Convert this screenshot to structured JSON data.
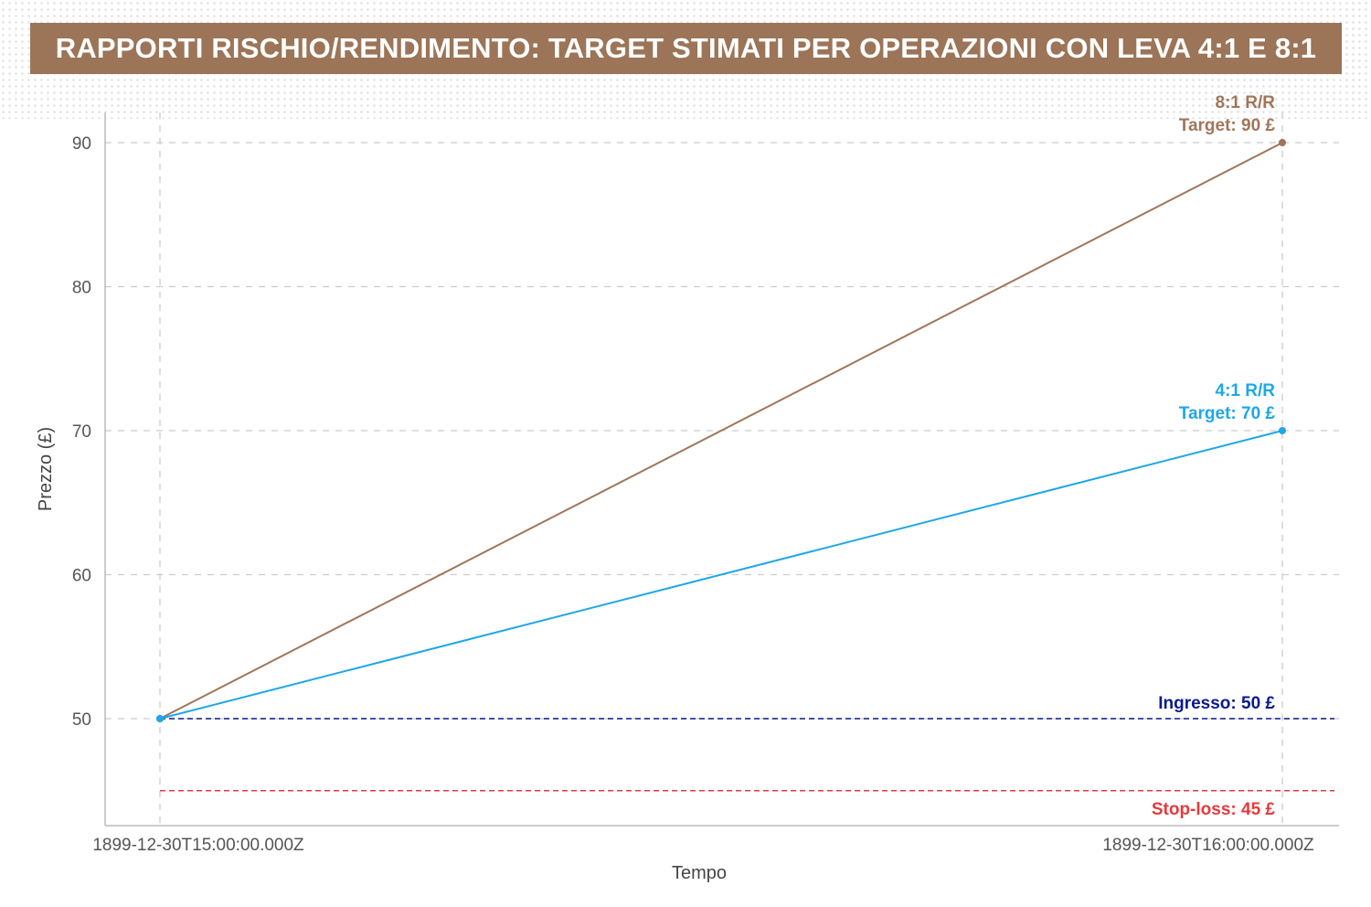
{
  "title": "RAPPORTI RISCHIO/RENDIMENTO: TARGET STIMATI PER OPERAZIONI CON LEVA 4:1 E 8:1",
  "colors": {
    "banner": "#9c7457",
    "series_8to1": "#a0765a",
    "series_4to1": "#1ea7e8",
    "entry": "#0a1a8c",
    "stop_loss": "#e8393c",
    "grid": "#cccccc"
  },
  "chart_data": {
    "type": "line",
    "x": [
      "1899-12-30T15:00:00.000Z",
      "1899-12-30T16:00:00.000Z"
    ],
    "series": [
      {
        "name": "8:1 R/R",
        "values": [
          50,
          90
        ],
        "color": "#a0765a"
      },
      {
        "name": "4:1 R/R",
        "values": [
          50,
          70
        ],
        "color": "#1ea7e8"
      }
    ],
    "reference_lines": [
      {
        "label": "Ingresso: 50 £",
        "value": 50,
        "color": "#0a1a8c",
        "style": "dashed"
      },
      {
        "label": "Stop-loss: 45 £",
        "value": 45,
        "color": "#e8393c",
        "style": "dashed"
      }
    ],
    "annotations": [
      {
        "lines": [
          "8:1 R/R",
          "Target: 90 £"
        ],
        "x": "1899-12-30T16:00:00.000Z",
        "y": 90,
        "color": "#a0765a"
      },
      {
        "lines": [
          "4:1 R/R",
          "Target: 70 £"
        ],
        "x": "1899-12-30T16:00:00.000Z",
        "y": 70,
        "color": "#1ea7e8"
      }
    ],
    "xlabel": "Tempo",
    "ylabel": "Prezzo (£)",
    "yticks": [
      50,
      60,
      70,
      80,
      90
    ],
    "ylim": [
      43,
      92
    ],
    "grid": true,
    "legend": "none"
  }
}
